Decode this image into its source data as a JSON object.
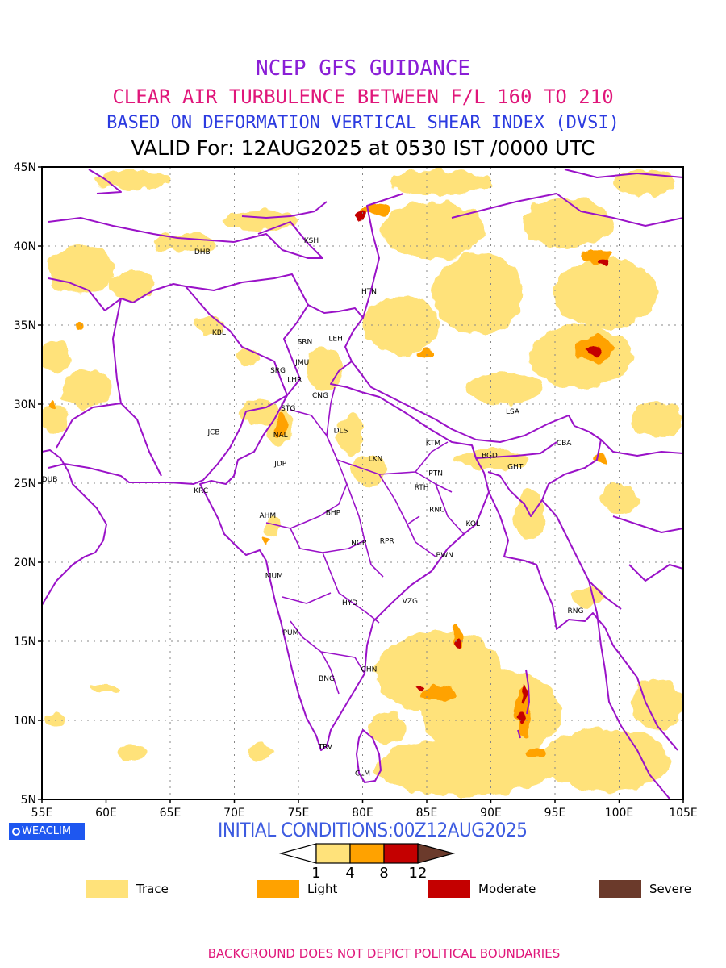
{
  "titles": {
    "line1": "NCEP GFS GUIDANCE",
    "line2": "CLEAR AIR TURBULENCE BETWEEN F/L 160 TO 210",
    "line3": "BASED ON DEFORMATION VERTICAL SHEAR INDEX (DVSI)",
    "line4": "VALID For: 12AUG2025 at 0530 IST /0000 UTC"
  },
  "map": {
    "lon_range": [
      55,
      105
    ],
    "lat_range": [
      5,
      45
    ],
    "lon_ticks": [
      "55E",
      "60E",
      "65E",
      "70E",
      "75E",
      "80E",
      "85E",
      "90E",
      "95E",
      "100E",
      "105E"
    ],
    "lat_ticks": [
      "5N",
      "10N",
      "15N",
      "20N",
      "25N",
      "30N",
      "35N",
      "40N",
      "45N"
    ],
    "grid": true,
    "boundary_color": "#9a12c8",
    "stations": [
      {
        "code": "KSH",
        "lon": 76.0,
        "lat": 40.4
      },
      {
        "code": "DHB",
        "lon": 67.5,
        "lat": 39.7
      },
      {
        "code": "HTN",
        "lon": 80.5,
        "lat": 37.2
      },
      {
        "code": "KBL",
        "lon": 68.8,
        "lat": 34.6
      },
      {
        "code": "SRN",
        "lon": 75.5,
        "lat": 34.0
      },
      {
        "code": "LEH",
        "lon": 77.9,
        "lat": 34.2
      },
      {
        "code": "JMU",
        "lon": 75.3,
        "lat": 32.7
      },
      {
        "code": "SRG",
        "lon": 73.4,
        "lat": 32.2
      },
      {
        "code": "LHR",
        "lon": 74.7,
        "lat": 31.6
      },
      {
        "code": "CNG",
        "lon": 76.7,
        "lat": 30.6
      },
      {
        "code": "STG",
        "lon": 74.2,
        "lat": 29.8
      },
      {
        "code": "JCB",
        "lon": 68.4,
        "lat": 28.3
      },
      {
        "code": "NAL",
        "lon": 73.6,
        "lat": 28.1
      },
      {
        "code": "DLS",
        "lon": 78.3,
        "lat": 28.4
      },
      {
        "code": "LSA",
        "lon": 91.7,
        "lat": 29.6
      },
      {
        "code": "KTM",
        "lon": 85.5,
        "lat": 27.6
      },
      {
        "code": "BGD",
        "lon": 89.9,
        "lat": 26.8
      },
      {
        "code": "CBA",
        "lon": 95.7,
        "lat": 27.6
      },
      {
        "code": "JDP",
        "lon": 73.6,
        "lat": 26.3
      },
      {
        "code": "LKN",
        "lon": 81.0,
        "lat": 26.6
      },
      {
        "code": "GHT",
        "lon": 91.9,
        "lat": 26.1
      },
      {
        "code": "PTN",
        "lon": 85.7,
        "lat": 25.7
      },
      {
        "code": "DUB",
        "lon": 55.6,
        "lat": 25.3
      },
      {
        "code": "KRC",
        "lon": 67.4,
        "lat": 24.6
      },
      {
        "code": "RTH",
        "lon": 84.6,
        "lat": 24.8
      },
      {
        "code": "AHM",
        "lon": 72.6,
        "lat": 23.0
      },
      {
        "code": "BHP",
        "lon": 77.7,
        "lat": 23.2
      },
      {
        "code": "RNC",
        "lon": 85.8,
        "lat": 23.4
      },
      {
        "code": "KOL",
        "lon": 88.6,
        "lat": 22.5
      },
      {
        "code": "NGP",
        "lon": 79.7,
        "lat": 21.3
      },
      {
        "code": "RPR",
        "lon": 81.9,
        "lat": 21.4
      },
      {
        "code": "BWN",
        "lon": 86.4,
        "lat": 20.5
      },
      {
        "code": "MUM",
        "lon": 73.1,
        "lat": 19.2
      },
      {
        "code": "HYD",
        "lon": 79.0,
        "lat": 17.5
      },
      {
        "code": "VZG",
        "lon": 83.7,
        "lat": 17.6
      },
      {
        "code": "RNG",
        "lon": 96.6,
        "lat": 17.0
      },
      {
        "code": "PUM",
        "lon": 74.4,
        "lat": 15.6
      },
      {
        "code": "CHN",
        "lon": 80.5,
        "lat": 13.3
      },
      {
        "code": "BNG",
        "lon": 77.2,
        "lat": 12.7
      },
      {
        "code": "TRV",
        "lon": 77.1,
        "lat": 8.4
      },
      {
        "code": "CLM",
        "lon": 80.0,
        "lat": 6.7
      }
    ],
    "turbulence_areas": [
      {
        "level": "trace",
        "lon": 62,
        "lat": 44.2,
        "rx": 3.0,
        "ry": 0.6
      },
      {
        "level": "trace",
        "lon": 58,
        "lat": 38.5,
        "rx": 2.6,
        "ry": 1.6
      },
      {
        "level": "trace",
        "lon": 62,
        "lat": 37.5,
        "rx": 1.8,
        "ry": 0.9
      },
      {
        "level": "trace",
        "lon": 56,
        "lat": 33.0,
        "rx": 1.2,
        "ry": 1.0
      },
      {
        "level": "trace",
        "lon": 58.5,
        "lat": 31.0,
        "rx": 2.0,
        "ry": 1.2
      },
      {
        "level": "trace",
        "lon": 56,
        "lat": 29.0,
        "rx": 1.0,
        "ry": 1.0
      },
      {
        "level": "trace",
        "lon": 66,
        "lat": 40.2,
        "rx": 2.4,
        "ry": 0.6
      },
      {
        "level": "trace",
        "lon": 72,
        "lat": 41.6,
        "rx": 3.0,
        "ry": 0.6
      },
      {
        "level": "trace",
        "lon": 68,
        "lat": 35.0,
        "rx": 1.2,
        "ry": 0.6
      },
      {
        "level": "trace",
        "lon": 71,
        "lat": 33.0,
        "rx": 1.0,
        "ry": 0.5
      },
      {
        "level": "trace",
        "lon": 72,
        "lat": 29.5,
        "rx": 1.6,
        "ry": 0.8
      },
      {
        "level": "trace",
        "lon": 73.5,
        "lat": 28.6,
        "rx": 1.0,
        "ry": 1.2
      },
      {
        "level": "trace",
        "lon": 77,
        "lat": 32.2,
        "rx": 1.4,
        "ry": 1.4
      },
      {
        "level": "trace",
        "lon": 79,
        "lat": 28.0,
        "rx": 1.0,
        "ry": 1.3
      },
      {
        "level": "trace",
        "lon": 80.5,
        "lat": 25.8,
        "rx": 1.4,
        "ry": 1.0
      },
      {
        "level": "trace",
        "lon": 86,
        "lat": 44.0,
        "rx": 4.0,
        "ry": 0.8
      },
      {
        "level": "trace",
        "lon": 85.5,
        "lat": 41.0,
        "rx": 4.0,
        "ry": 1.8
      },
      {
        "level": "trace",
        "lon": 83,
        "lat": 35.0,
        "rx": 3.0,
        "ry": 1.8
      },
      {
        "level": "trace",
        "lon": 89,
        "lat": 37.0,
        "rx": 3.5,
        "ry": 2.6
      },
      {
        "level": "trace",
        "lon": 96,
        "lat": 41.5,
        "rx": 3.5,
        "ry": 1.6
      },
      {
        "level": "trace",
        "lon": 99,
        "lat": 37.0,
        "rx": 4.0,
        "ry": 2.2
      },
      {
        "level": "trace",
        "lon": 97,
        "lat": 33.0,
        "rx": 4.0,
        "ry": 2.0
      },
      {
        "level": "trace",
        "lon": 102,
        "lat": 44.0,
        "rx": 2.5,
        "ry": 0.8
      },
      {
        "level": "trace",
        "lon": 103,
        "lat": 29.0,
        "rx": 2.0,
        "ry": 1.2
      },
      {
        "level": "trace",
        "lon": 91,
        "lat": 31.0,
        "rx": 3.0,
        "ry": 1.0
      },
      {
        "level": "trace",
        "lon": 90,
        "lat": 26.5,
        "rx": 3.0,
        "ry": 0.6
      },
      {
        "level": "trace",
        "lon": 93,
        "lat": 23.0,
        "rx": 1.2,
        "ry": 1.6
      },
      {
        "level": "trace",
        "lon": 100,
        "lat": 24.0,
        "rx": 1.5,
        "ry": 1.0
      },
      {
        "level": "trace",
        "lon": 97.5,
        "lat": 17.8,
        "rx": 1.2,
        "ry": 0.6
      },
      {
        "level": "trace",
        "lon": 86,
        "lat": 13.0,
        "rx": 5.0,
        "ry": 2.6
      },
      {
        "level": "trace",
        "lon": 90,
        "lat": 10.5,
        "rx": 5.5,
        "ry": 2.8
      },
      {
        "level": "trace",
        "lon": 88,
        "lat": 7.0,
        "rx": 7.0,
        "ry": 1.8
      },
      {
        "level": "trace",
        "lon": 99,
        "lat": 7.5,
        "rx": 5.0,
        "ry": 2.0
      },
      {
        "level": "trace",
        "lon": 103,
        "lat": 11.0,
        "rx": 2.0,
        "ry": 1.6
      },
      {
        "level": "trace",
        "lon": 62,
        "lat": 8.0,
        "rx": 1.2,
        "ry": 0.4
      },
      {
        "level": "trace",
        "lon": 72,
        "lat": 8.0,
        "rx": 1.0,
        "ry": 0.5
      },
      {
        "level": "trace",
        "lon": 60,
        "lat": 12.0,
        "rx": 1.2,
        "ry": 0.3
      },
      {
        "level": "trace",
        "lon": 56,
        "lat": 10.0,
        "rx": 0.8,
        "ry": 0.4
      },
      {
        "level": "trace",
        "lon": 82,
        "lat": 9.5,
        "rx": 1.5,
        "ry": 1.0
      },
      {
        "level": "trace",
        "lon": 73,
        "lat": 22.2,
        "rx": 0.6,
        "ry": 0.6
      },
      {
        "level": "light",
        "lon": 81.0,
        "lat": 42.3,
        "rx": 1.2,
        "ry": 0.3
      },
      {
        "level": "light",
        "lon": 98.2,
        "lat": 39.3,
        "rx": 1.2,
        "ry": 0.5
      },
      {
        "level": "light",
        "lon": 98.0,
        "lat": 33.5,
        "rx": 1.6,
        "ry": 0.8
      },
      {
        "level": "light",
        "lon": 73.6,
        "lat": 28.7,
        "rx": 0.5,
        "ry": 0.8
      },
      {
        "level": "light",
        "lon": 85.0,
        "lat": 33.2,
        "rx": 0.7,
        "ry": 0.3
      },
      {
        "level": "light",
        "lon": 58.0,
        "lat": 34.9,
        "rx": 0.5,
        "ry": 0.3
      },
      {
        "level": "light",
        "lon": 55.8,
        "lat": 29.9,
        "rx": 0.3,
        "ry": 0.3
      },
      {
        "level": "light",
        "lon": 92.5,
        "lat": 10.5,
        "rx": 0.6,
        "ry": 1.6
      },
      {
        "level": "light",
        "lon": 86.0,
        "lat": 11.7,
        "rx": 1.4,
        "ry": 0.5
      },
      {
        "level": "light",
        "lon": 87.4,
        "lat": 15.4,
        "rx": 0.4,
        "ry": 0.8
      },
      {
        "level": "light",
        "lon": 98.5,
        "lat": 26.5,
        "rx": 0.5,
        "ry": 0.3
      },
      {
        "level": "light",
        "lon": 93.5,
        "lat": 8.0,
        "rx": 0.8,
        "ry": 0.4
      },
      {
        "level": "light",
        "lon": 72.5,
        "lat": 21.3,
        "rx": 0.3,
        "ry": 0.2
      },
      {
        "level": "moderate",
        "lon": 79.9,
        "lat": 42.0,
        "rx": 0.5,
        "ry": 0.3
      },
      {
        "level": "moderate",
        "lon": 98.8,
        "lat": 39.0,
        "rx": 0.5,
        "ry": 0.2
      },
      {
        "level": "moderate",
        "lon": 98.0,
        "lat": 33.4,
        "rx": 0.5,
        "ry": 0.3
      },
      {
        "level": "moderate",
        "lon": 92.6,
        "lat": 11.7,
        "rx": 0.2,
        "ry": 0.6
      },
      {
        "level": "moderate",
        "lon": 92.3,
        "lat": 10.2,
        "rx": 0.3,
        "ry": 0.4
      },
      {
        "level": "moderate",
        "lon": 87.4,
        "lat": 14.9,
        "rx": 0.2,
        "ry": 0.3
      },
      {
        "level": "moderate",
        "lon": 84.4,
        "lat": 12.0,
        "rx": 0.3,
        "ry": 0.2
      }
    ]
  },
  "branding": {
    "logo_text": "WEACLIM"
  },
  "initial_conditions": "INITIAL CONDITIONS:00Z12AUG2025",
  "colorbar": {
    "ticks": [
      "1",
      "4",
      "8",
      "12"
    ],
    "colors": [
      "#ffffff",
      "#ffe27a",
      "#ffa200",
      "#c40000",
      "#6b3a2b"
    ]
  },
  "legend": [
    {
      "label": "Trace",
      "color": "#ffe27a"
    },
    {
      "label": "Light",
      "color": "#ffa200"
    },
    {
      "label": "Moderate",
      "color": "#c40000"
    },
    {
      "label": "Severe",
      "color": "#6b3a2b"
    }
  ],
  "footer": "BACKGROUND DOES NOT DEPICT POLITICAL BOUNDARIES"
}
